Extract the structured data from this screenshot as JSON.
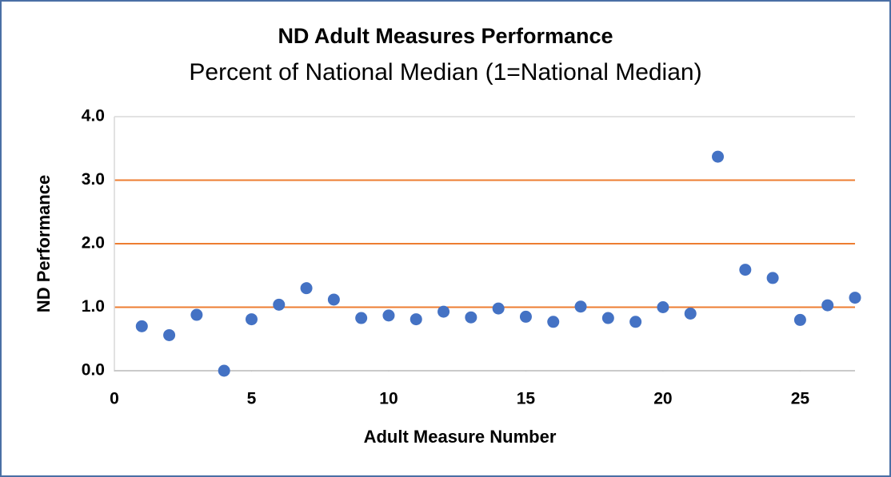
{
  "chart_data": {
    "type": "scatter",
    "title": "ND Adult Measures Performance",
    "subtitle": "Percent of National Median (1=National Median)",
    "xlabel": "Adult Measure Number",
    "ylabel": "ND Performance",
    "x": [
      1,
      2,
      3,
      4,
      5,
      6,
      7,
      8,
      9,
      10,
      11,
      12,
      13,
      14,
      15,
      16,
      17,
      18,
      19,
      20,
      21,
      22,
      23,
      24,
      25,
      26,
      27
    ],
    "values": [
      0.7,
      0.56,
      0.88,
      0.0,
      0.81,
      1.04,
      1.3,
      1.12,
      0.83,
      0.87,
      0.81,
      0.93,
      0.84,
      0.98,
      0.85,
      0.77,
      1.01,
      0.83,
      0.77,
      1.0,
      0.9,
      3.37,
      1.59,
      1.46,
      0.8,
      1.03,
      1.15
    ],
    "color": "#4472c4",
    "grid_color": "#ed7d31",
    "grid": true,
    "xlim": [
      0,
      27
    ],
    "xticks": [
      0,
      5,
      10,
      15,
      20,
      25
    ],
    "ylim": [
      0,
      4
    ],
    "yticks": [
      {
        "value": 0,
        "label": "0.0"
      },
      {
        "value": 1,
        "label": "1.0"
      },
      {
        "value": 2,
        "label": "2.0"
      },
      {
        "value": 3,
        "label": "3.0"
      },
      {
        "value": 4,
        "label": "4.0"
      }
    ]
  }
}
